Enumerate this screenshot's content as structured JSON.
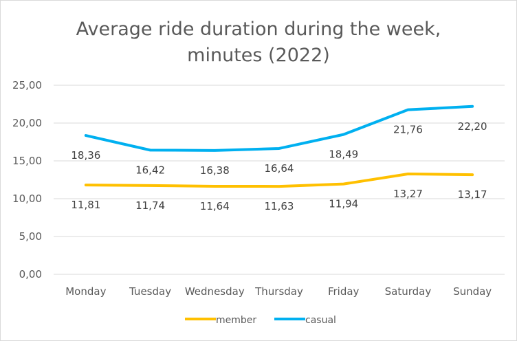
{
  "chart_data": {
    "type": "line",
    "title_lines": [
      "Average ride duration during the week,",
      "minutes (2022)"
    ],
    "categories": [
      "Monday",
      "Tuesday",
      "Wednesday",
      "Thursday",
      "Friday",
      "Saturday",
      "Sunday"
    ],
    "ylim": [
      0,
      25
    ],
    "y_ticks": [
      "0,00",
      "5,00",
      "10,00",
      "15,00",
      "20,00",
      "25,00"
    ],
    "grid": true,
    "legend_position": "bottom",
    "series": [
      {
        "name": "member",
        "color": "#FFC000",
        "values": [
          11.81,
          11.74,
          11.64,
          11.63,
          11.94,
          13.27,
          13.17
        ],
        "labels": [
          "11,81",
          "11,74",
          "11,64",
          "11,63",
          "11,94",
          "13,27",
          "13,17"
        ]
      },
      {
        "name": "casual",
        "color": "#00B0F0",
        "values": [
          18.36,
          16.42,
          16.38,
          16.64,
          18.49,
          21.76,
          22.2
        ],
        "labels": [
          "18,36",
          "16,42",
          "16,38",
          "16,64",
          "18,49",
          "21,76",
          "22,20"
        ]
      }
    ]
  }
}
